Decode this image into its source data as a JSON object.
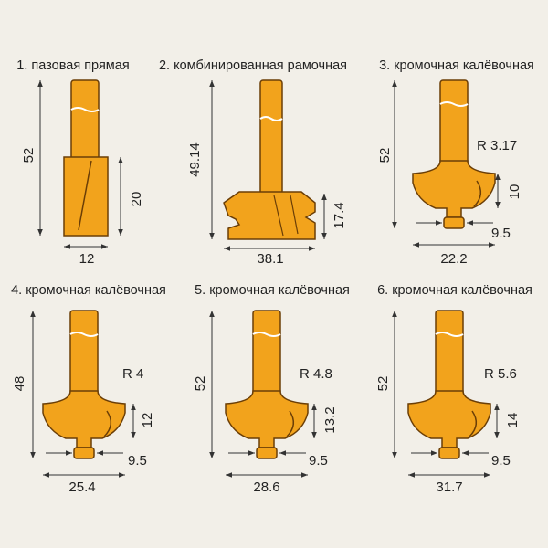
{
  "items": [
    {
      "title": "1. пазовая прямая",
      "dimensions": [
        "52",
        "20",
        "12"
      ]
    },
    {
      "title": "2. комбинированная рамочная",
      "dimensions": [
        "49.14",
        "17.4",
        "38.1"
      ]
    },
    {
      "title": "3. кромочная калёвочная",
      "dimensions": [
        "52",
        "R 3.17",
        "10",
        "9.5",
        "22.2"
      ]
    },
    {
      "title": "4. кромочная калёвочная",
      "dimensions": [
        "48",
        "R 4",
        "12",
        "9.5",
        "25.4"
      ]
    },
    {
      "title": "5. кромочная калёвочная",
      "dimensions": [
        "52",
        "R 4.8",
        "13.2",
        "9.5",
        "28.6"
      ]
    },
    {
      "title": "6. кромочная калёвочная",
      "dimensions": [
        "52",
        "R 5.6",
        "14",
        "9.5",
        "31.7"
      ]
    }
  ]
}
